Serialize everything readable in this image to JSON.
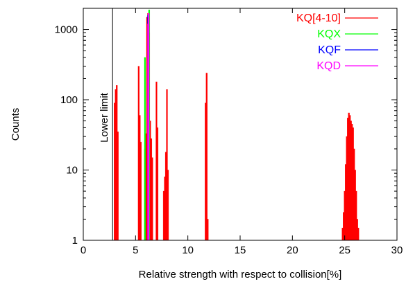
{
  "chart_data": {
    "type": "bar",
    "title": "",
    "xlabel": "Relative strength with respect to collision[%]",
    "ylabel": "Counts",
    "xlim": [
      0,
      30
    ],
    "ylim": [
      1,
      2000
    ],
    "yscale": "log",
    "x_ticks": [
      0,
      5,
      10,
      15,
      20,
      25,
      30
    ],
    "y_ticks": [
      1,
      10,
      100,
      1000
    ],
    "grid": false,
    "legend_position": "top-right",
    "annotations": [
      {
        "text": "Lower limit",
        "x": 2.8
      }
    ],
    "series": [
      {
        "name": "KQ[4-10]",
        "color": "#ff0000",
        "x": [
          3.0,
          3.1,
          3.2,
          3.3,
          5.3,
          5.4,
          5.5,
          5.9,
          6.0,
          6.1,
          6.2,
          6.3,
          6.4,
          6.5,
          6.6,
          7.0,
          7.1,
          7.7,
          7.8,
          7.9,
          8.0,
          8.1,
          11.7,
          11.8,
          11.9,
          24.8,
          24.9,
          25.0,
          25.1,
          25.2,
          25.3,
          25.4,
          25.5,
          25.6,
          25.7,
          25.8,
          25.9,
          26.0,
          26.1,
          26.2,
          26.3
        ],
        "values": [
          90,
          140,
          160,
          35,
          300,
          60,
          25,
          20,
          33,
          1500,
          1700,
          900,
          50,
          28,
          15,
          180,
          40,
          5,
          8,
          18,
          140,
          10,
          90,
          240,
          2,
          1.5,
          2.5,
          5,
          12,
          30,
          55,
          65,
          60,
          50,
          45,
          40,
          20,
          10,
          5,
          2,
          1.5
        ]
      },
      {
        "name": "KQX",
        "color": "#00ff00",
        "x": [
          5.9,
          6.3
        ],
        "values": [
          400,
          1900
        ]
      },
      {
        "name": "KQF",
        "color": "#0000ff",
        "x": [
          6.2
        ],
        "values": [
          1600
        ]
      },
      {
        "name": "KQD",
        "color": "#ff00ff",
        "x": [
          6.2,
          6.25
        ],
        "values": [
          1200,
          1700
        ]
      }
    ]
  }
}
